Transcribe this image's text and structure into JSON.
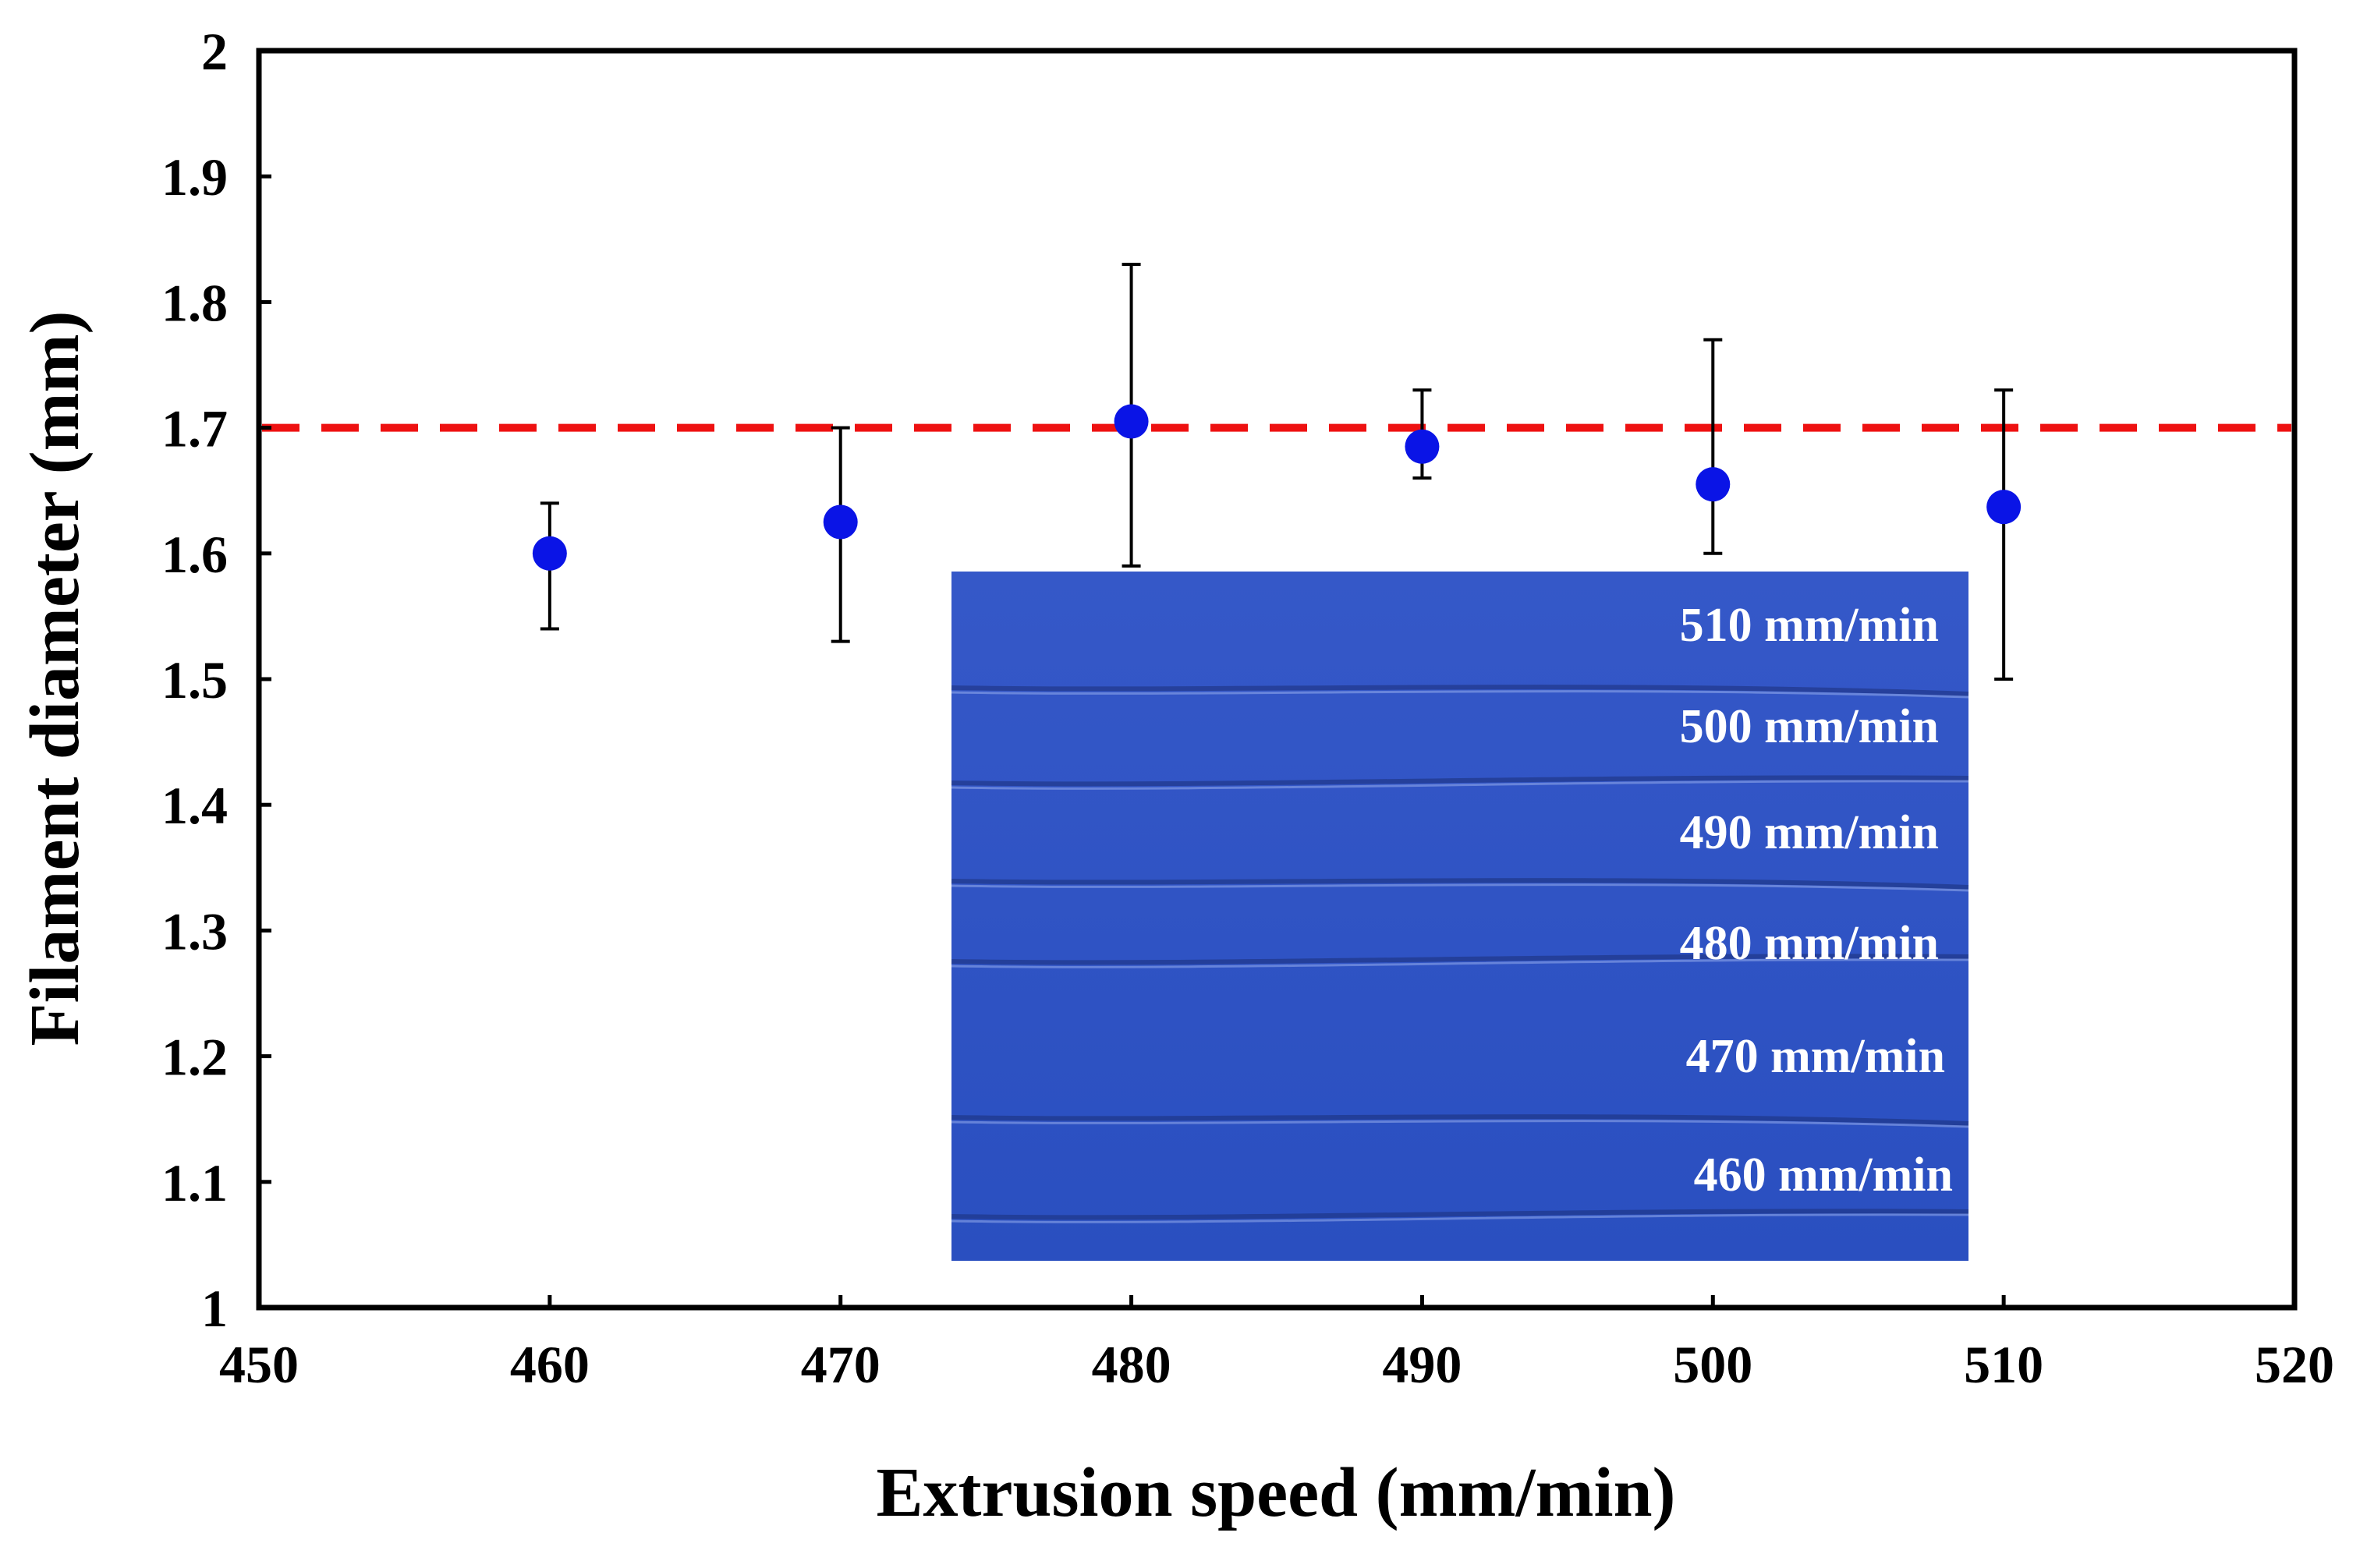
{
  "colors": {
    "point": "#0a14e6",
    "reference_line": "#ee1111",
    "inset_background": "#2f54c4",
    "inset_text": "#ffffff",
    "axis": "#000000"
  },
  "chart_data": {
    "type": "scatter",
    "title": "",
    "xlabel": "Extrusion speed (mm/min)",
    "ylabel": "Filament diameter (mm)",
    "xlim": [
      450,
      520
    ],
    "ylim": [
      1,
      2
    ],
    "xticks": [
      450,
      460,
      470,
      480,
      490,
      500,
      510,
      520
    ],
    "yticks": [
      1,
      1.1,
      1.2,
      1.3,
      1.4,
      1.5,
      1.6,
      1.7,
      1.8,
      1.9,
      2
    ],
    "ytick_labels": [
      "1",
      "1.1",
      "1.2",
      "1.3",
      "1.4",
      "1.5",
      "1.6",
      "1.7",
      "1.8",
      "1.9",
      "2"
    ],
    "grid": false,
    "reference_line": {
      "y": 1.7,
      "style": "dashed"
    },
    "series": [
      {
        "name": "Filament diameter",
        "x": [
          460,
          470,
          480,
          490,
          500,
          510
        ],
        "y": [
          1.6,
          1.625,
          1.705,
          1.685,
          1.655,
          1.637
        ],
        "err_low": [
          1.54,
          1.53,
          1.59,
          1.66,
          1.6,
          1.5
        ],
        "err_high": [
          1.64,
          1.7,
          1.83,
          1.73,
          1.77,
          1.73
        ]
      }
    ],
    "inset": {
      "description": "photo of extruded filaments",
      "labels": [
        "510 mm/min",
        "500 mm/min",
        "490 mm/min",
        "480 mm/min",
        "470 mm/min",
        "460 mm/min"
      ]
    }
  }
}
